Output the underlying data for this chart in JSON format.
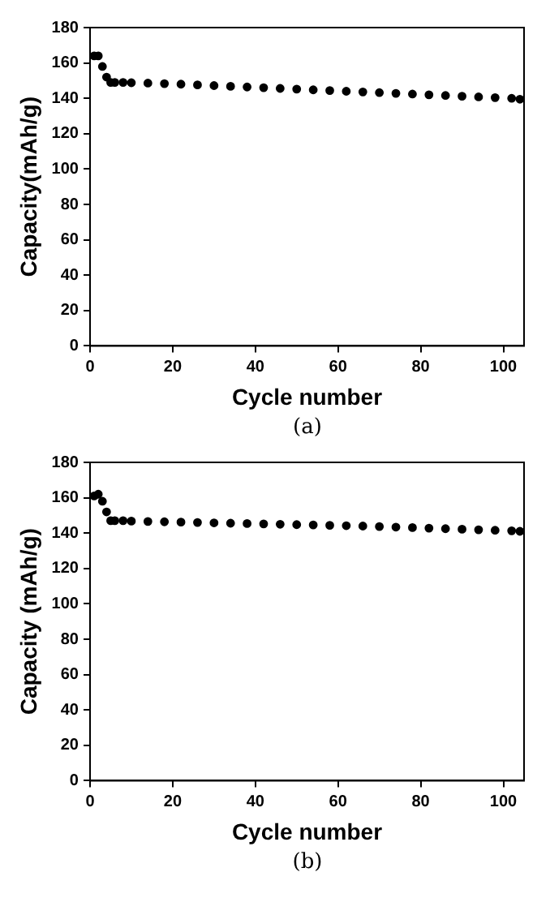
{
  "chart_data": [
    {
      "type": "scatter",
      "xlabel": "Cycle number",
      "ylabel": "Capacity(mAh/g)",
      "annotations": [
        "(a)"
      ],
      "marker": "circle",
      "xlim": [
        0,
        105
      ],
      "xticks": [
        0,
        20,
        40,
        60,
        80,
        100
      ],
      "ylim": [
        0,
        180
      ],
      "yticks": [
        0,
        20,
        40,
        60,
        80,
        100,
        120,
        140,
        160,
        180
      ],
      "series": [
        {
          "color": "#000000",
          "x": [
            1,
            2,
            3,
            4,
            5,
            6,
            8,
            10,
            14,
            18,
            22,
            26,
            30,
            34,
            38,
            42,
            46,
            50,
            54,
            58,
            62,
            66,
            70,
            74,
            78,
            82,
            86,
            90,
            94,
            98,
            102,
            104
          ],
          "values": [
            164,
            164,
            158,
            152,
            149,
            149,
            149,
            148.8,
            148.6,
            148.3,
            148,
            147.6,
            147.2,
            146.8,
            146.4,
            146,
            145.6,
            145.2,
            144.8,
            144.4,
            144,
            143.6,
            143.2,
            142.8,
            142.4,
            142,
            141.6,
            141.2,
            140.8,
            140.4,
            140,
            139.5
          ]
        }
      ]
    },
    {
      "type": "scatter",
      "xlabel": "Cycle number",
      "ylabel": "Capacity (mAh/g)",
      "annotations": [
        "(b)"
      ],
      "marker": "circle",
      "xlim": [
        0,
        105
      ],
      "xticks": [
        0,
        20,
        40,
        60,
        80,
        100
      ],
      "ylim": [
        0,
        180
      ],
      "yticks": [
        0,
        20,
        40,
        60,
        80,
        100,
        120,
        140,
        160,
        180
      ],
      "series": [
        {
          "color": "#000000",
          "x": [
            1,
            2,
            3,
            4,
            5,
            6,
            8,
            10,
            14,
            18,
            22,
            26,
            30,
            34,
            38,
            42,
            46,
            50,
            54,
            58,
            62,
            66,
            70,
            74,
            78,
            82,
            86,
            90,
            94,
            98,
            102,
            104
          ],
          "values": [
            161,
            162,
            158,
            152,
            147,
            147,
            147,
            146.8,
            146.6,
            146.4,
            146.2,
            146,
            145.8,
            145.6,
            145.4,
            145.2,
            145,
            144.8,
            144.6,
            144.4,
            144.2,
            144,
            143.7,
            143.4,
            143.1,
            142.8,
            142.5,
            142.2,
            141.9,
            141.6,
            141.3,
            141
          ]
        }
      ]
    }
  ]
}
